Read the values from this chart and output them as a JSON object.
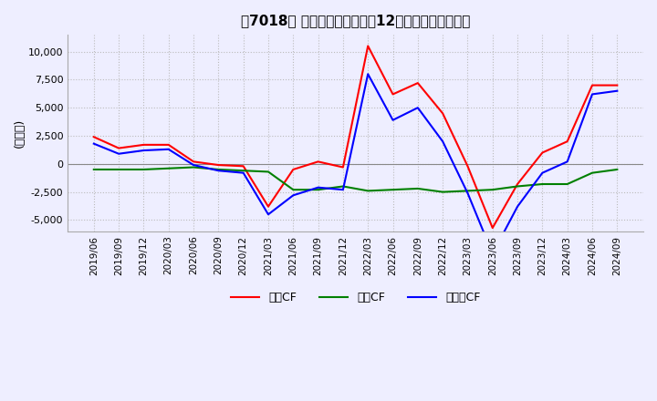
{
  "title": "【7018】 キャッシュフローの12か月移動合計の推移",
  "ylabel": "(百万円)",
  "ylim": [
    -6000,
    11500
  ],
  "yticks": [
    -5000,
    -2500,
    0,
    2500,
    5000,
    7500,
    10000
  ],
  "dates": [
    "2019/06",
    "2019/09",
    "2019/12",
    "2020/03",
    "2020/06",
    "2020/09",
    "2020/12",
    "2021/03",
    "2021/06",
    "2021/09",
    "2021/12",
    "2022/03",
    "2022/06",
    "2022/09",
    "2022/12",
    "2023/03",
    "2023/06",
    "2023/09",
    "2023/12",
    "2024/03",
    "2024/06",
    "2024/09"
  ],
  "operating_cf": [
    2400,
    1400,
    1700,
    1700,
    200,
    -100,
    -200,
    -3800,
    -500,
    200,
    -300,
    10500,
    6200,
    7200,
    4500,
    -200,
    -5700,
    -1800,
    1000,
    2000,
    7000,
    7000
  ],
  "investing_cf": [
    -500,
    -500,
    -500,
    -400,
    -300,
    -500,
    -600,
    -700,
    -2300,
    -2300,
    -2000,
    -2400,
    -2300,
    -2200,
    -2500,
    -2400,
    -2300,
    -2000,
    -1800,
    -1800,
    -800,
    -500
  ],
  "free_cf": [
    1800,
    900,
    1200,
    1300,
    -100,
    -600,
    -800,
    -4500,
    -2800,
    -2100,
    -2300,
    8000,
    3900,
    5000,
    2000,
    -2600,
    -8000,
    -3800,
    -800,
    200,
    6200,
    6500
  ],
  "color_operating": "#ff0000",
  "color_investing": "#008000",
  "color_free": "#0000ff",
  "background_color": "#eeeeff",
  "grid_color": "#bbbbbb",
  "legend_labels": [
    "営業CF",
    "投資CF",
    "フリーCF"
  ]
}
